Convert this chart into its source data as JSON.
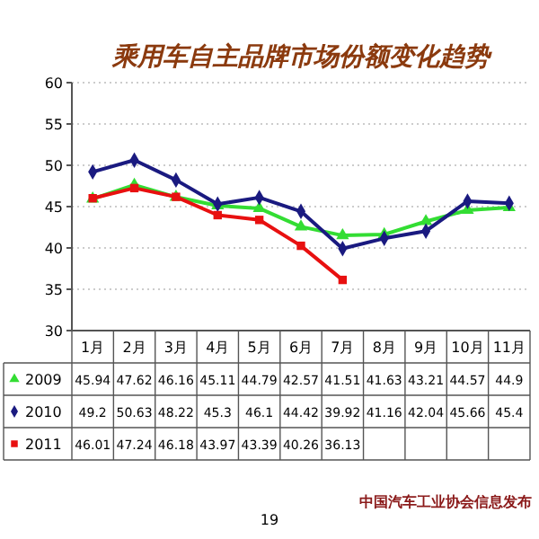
{
  "chart_data": {
    "type": "line",
    "title": "乘用车自主品牌市场份额变化趋势",
    "categories": [
      "1月",
      "2月",
      "3月",
      "4月",
      "5月",
      "6月",
      "7月",
      "8月",
      "9月",
      "10月",
      "11月"
    ],
    "series": [
      {
        "name": "2009",
        "color": "#33dd33",
        "marker": "triangle",
        "values": [
          45.94,
          47.62,
          46.16,
          45.11,
          44.79,
          42.57,
          41.51,
          41.63,
          43.21,
          44.57,
          44.9
        ]
      },
      {
        "name": "2010",
        "color": "#1a1a80",
        "marker": "diamond",
        "values": [
          49.2,
          50.63,
          48.22,
          45.3,
          46.1,
          44.42,
          39.92,
          41.16,
          42.04,
          45.66,
          45.4
        ]
      },
      {
        "name": "2011",
        "color": "#e81010",
        "marker": "square",
        "values": [
          46.01,
          47.24,
          46.18,
          43.97,
          43.39,
          40.26,
          36.13,
          null,
          null,
          null,
          null
        ]
      }
    ],
    "ylim": [
      30,
      60
    ],
    "yticks": [
      30,
      35,
      40,
      45,
      50,
      55,
      60
    ],
    "grid": "y",
    "data_labels": true,
    "legend": "bottom left",
    "line_style": "solid",
    "annotations": [
      "19",
      "中国汽车工业协会信息发布"
    ]
  }
}
